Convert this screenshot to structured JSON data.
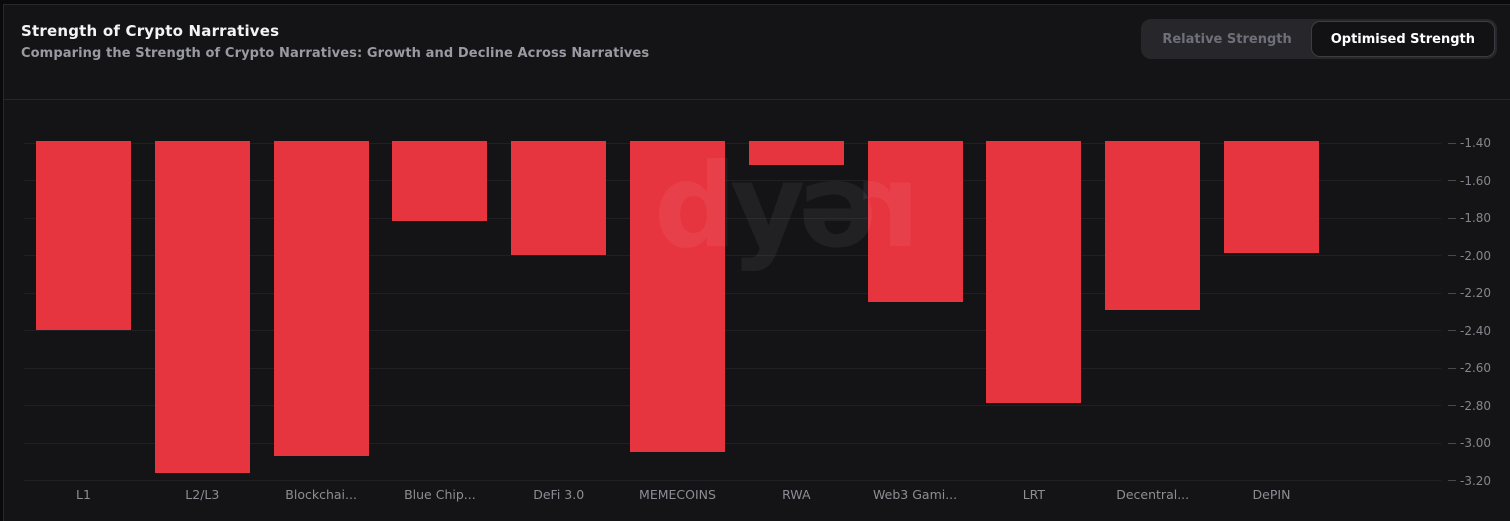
{
  "header": {
    "title": "Strength of Crypto Narratives",
    "subtitle": "Comparing the Strength of Crypto Narratives: Growth and Decline Across Narratives"
  },
  "toggle": {
    "options": [
      {
        "label": "Relative Strength",
        "active": false
      },
      {
        "label": "Optimised Strength",
        "active": true
      }
    ]
  },
  "watermark": {
    "text": "dyor",
    "glyphs": [
      "d",
      "y",
      "ə",
      "r"
    ]
  },
  "colors": {
    "bar_red": "#e7353f",
    "card_background": "#141417",
    "gridline": "#1f1f24",
    "tick_label": "#85858d",
    "active_tab_text": "#ffffff",
    "inactive_tab_text": "#6f6f79"
  },
  "chart_data": {
    "type": "bar",
    "title": "Strength of Crypto Narratives",
    "subtitle": "Comparing the Strength of Crypto Narratives: Growth and Decline Across Narratives",
    "categories": [
      "L1",
      "L2/L3",
      "Blockchai...",
      "Blue Chip...",
      "DeFi 3.0",
      "MEMECOINS",
      "RWA",
      "Web3 Gami...",
      "LRT",
      "Decentral...",
      "DePIN"
    ],
    "values": [
      -2.4,
      -3.16,
      -3.07,
      -1.82,
      -2.0,
      -3.05,
      -1.52,
      -2.25,
      -2.79,
      -2.29,
      -1.99
    ],
    "y_ticks": [
      "-1.40",
      "-1.60",
      "-1.80",
      "-2.00",
      "-2.20",
      "-2.40",
      "-2.60",
      "-2.80",
      "-3.00",
      "-3.20"
    ],
    "y_tick_values": [
      -1.4,
      -1.6,
      -1.8,
      -2.0,
      -2.2,
      -2.4,
      -2.6,
      -2.8,
      -3.0,
      -3.2
    ],
    "ylim": [
      -3.2,
      -1.4
    ],
    "y_axis_side": "right",
    "grid": true,
    "legend": false,
    "bars_clipped_at_axis_top": true,
    "bar_color": "#e7353f",
    "xlabel": "",
    "ylabel": ""
  }
}
